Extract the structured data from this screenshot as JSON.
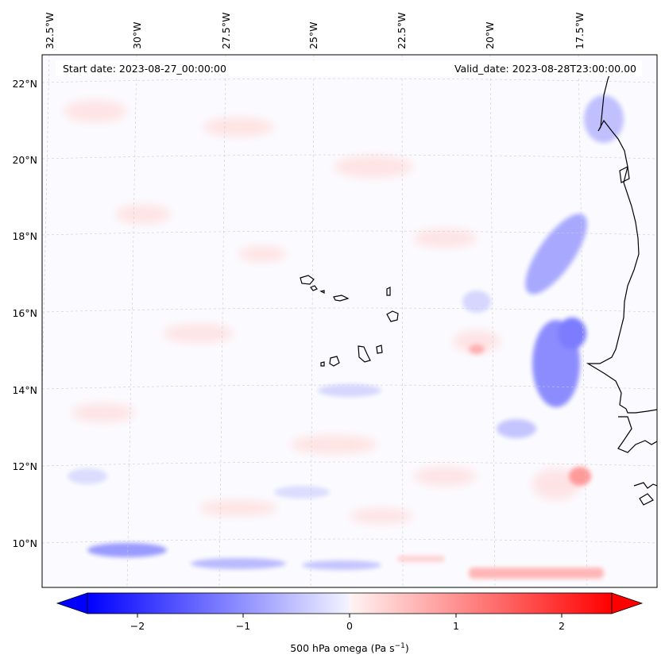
{
  "map": {
    "start_label": "Start date: 2023-08-27_00:00:00",
    "valid_label": "Valid_date: 2023-08-28T23:00:00.00",
    "lon_labels": [
      "32.5°W",
      "30°W",
      "27.5°W",
      "25°W",
      "22.5°W",
      "20°W",
      "17.5°W"
    ],
    "lat_labels": [
      "22°N",
      "20°N",
      "18°N",
      "16°N",
      "14°N",
      "12°N",
      "10°N"
    ],
    "field": "500 hPa omega",
    "range": [
      -2.6,
      2.6
    ]
  },
  "colorbar": {
    "ticks": [
      "−2",
      "−1",
      "0",
      "1",
      "2"
    ],
    "tick_values": [
      -2,
      -1,
      0,
      1,
      2
    ],
    "label": "500 hPa omega (Pa s",
    "label_sup": "−1",
    "label_close": ")",
    "colors": {
      "negative": "#0000ff",
      "zero": "#ffffff",
      "positive": "#ff0000"
    }
  }
}
